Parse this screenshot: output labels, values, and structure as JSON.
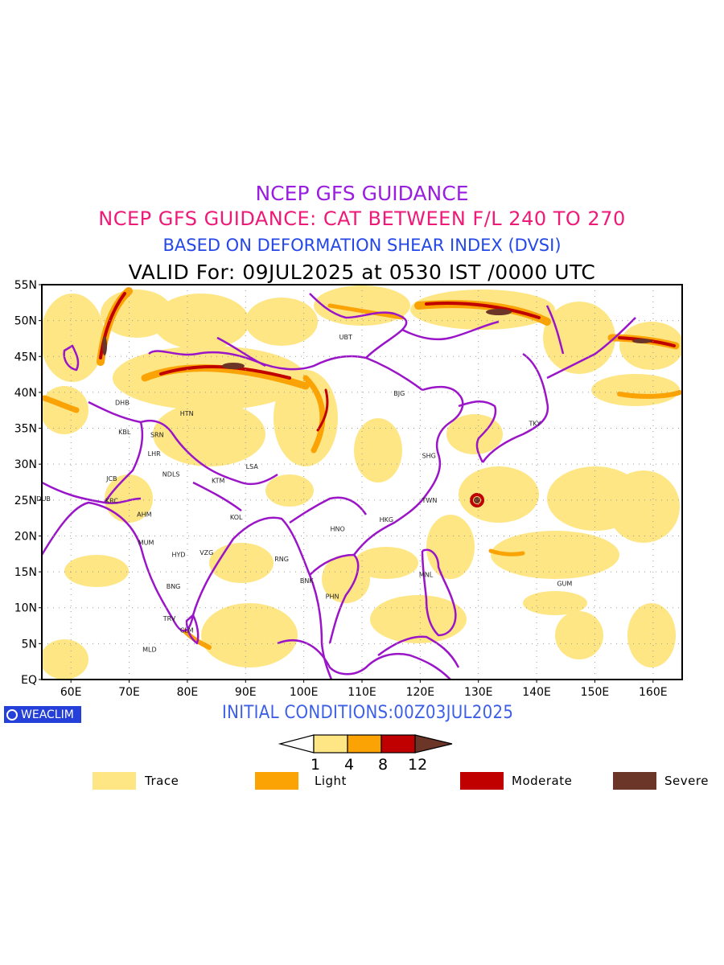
{
  "titles": {
    "line1": "NCEP GFS GUIDANCE",
    "line2": "NCEP GFS GUIDANCE: CAT BETWEEN F/L 240 TO 270",
    "line3": "BASED ON DEFORMATION SHEAR INDEX (DVSI)",
    "line4": "VALID For: 09JUL2025 at 0530 IST /0000 UTC"
  },
  "map": {
    "lat_labels": [
      "55N",
      "50N",
      "45N",
      "40N",
      "35N",
      "30N",
      "25N",
      "20N",
      "15N",
      "10N",
      "5N",
      "EQ"
    ],
    "lon_labels": [
      "60E",
      "70E",
      "80E",
      "90E",
      "100E",
      "110E",
      "120E",
      "130E",
      "140E",
      "150E",
      "160E"
    ],
    "extent": {
      "lon_min": 55,
      "lon_max": 165,
      "lat_min": 0,
      "lat_max": 55
    },
    "stations": [
      {
        "name": "UBT",
        "lon": 107.2,
        "lat": 47.7
      },
      {
        "name": "BJG",
        "lon": 116.4,
        "lat": 39.9
      },
      {
        "name": "TKY",
        "lon": 139.7,
        "lat": 35.7
      },
      {
        "name": "SHG",
        "lon": 121.5,
        "lat": 31.2
      },
      {
        "name": "TWN",
        "lon": 121.6,
        "lat": 25.0
      },
      {
        "name": "HKG",
        "lon": 114.2,
        "lat": 22.3
      },
      {
        "name": "HNO",
        "lon": 105.8,
        "lat": 21.0
      },
      {
        "name": "DHB",
        "lon": 68.8,
        "lat": 38.6
      },
      {
        "name": "HTN",
        "lon": 79.9,
        "lat": 37.1
      },
      {
        "name": "KBL",
        "lon": 69.2,
        "lat": 34.5
      },
      {
        "name": "SRN",
        "lon": 74.8,
        "lat": 34.1
      },
      {
        "name": "LHR",
        "lon": 74.3,
        "lat": 31.5
      },
      {
        "name": "JCB",
        "lon": 67.0,
        "lat": 28.0
      },
      {
        "name": "NDLS",
        "lon": 77.2,
        "lat": 28.6
      },
      {
        "name": "KTM",
        "lon": 85.3,
        "lat": 27.7
      },
      {
        "name": "LSA",
        "lon": 91.1,
        "lat": 29.7
      },
      {
        "name": "DUB",
        "lon": 55.3,
        "lat": 25.2
      },
      {
        "name": "KRC",
        "lon": 67.0,
        "lat": 24.9
      },
      {
        "name": "AHM",
        "lon": 72.6,
        "lat": 23.0
      },
      {
        "name": "KOL",
        "lon": 88.4,
        "lat": 22.6
      },
      {
        "name": "MUM",
        "lon": 72.9,
        "lat": 19.1
      },
      {
        "name": "HYD",
        "lon": 78.5,
        "lat": 17.4
      },
      {
        "name": "VZG",
        "lon": 83.3,
        "lat": 17.7
      },
      {
        "name": "RNG",
        "lon": 96.2,
        "lat": 16.8
      },
      {
        "name": "BNK",
        "lon": 100.5,
        "lat": 13.8
      },
      {
        "name": "PHN",
        "lon": 104.9,
        "lat": 11.6
      },
      {
        "name": "MNL",
        "lon": 121.0,
        "lat": 14.6
      },
      {
        "name": "GUM",
        "lon": 144.8,
        "lat": 13.4
      },
      {
        "name": "BNG",
        "lon": 77.6,
        "lat": 13.0
      },
      {
        "name": "TRV",
        "lon": 76.9,
        "lat": 8.5
      },
      {
        "name": "CLM",
        "lon": 79.9,
        "lat": 6.9
      },
      {
        "name": "MLD",
        "lon": 73.5,
        "lat": 4.2
      }
    ]
  },
  "initial_conditions": "INITIAL CONDITIONS:00Z03JUL2025",
  "badge": "WEACLIM",
  "colorbar": {
    "ticks": [
      "1",
      "4",
      "8",
      "12"
    ],
    "colors": [
      "#fee685",
      "#fba205",
      "#c00000",
      "#6b3527"
    ]
  },
  "legend": [
    {
      "label": "Trace",
      "color": "#fee685"
    },
    {
      "label": "Light",
      "color": "#fba205"
    },
    {
      "label": "Moderate",
      "color": "#c00000"
    },
    {
      "label": "Severe",
      "color": "#6b3527"
    }
  ],
  "colors": {
    "border": "#9a14c8",
    "title1": "#9a1ee0",
    "title2": "#ee1a78",
    "title3": "#2447e8"
  }
}
